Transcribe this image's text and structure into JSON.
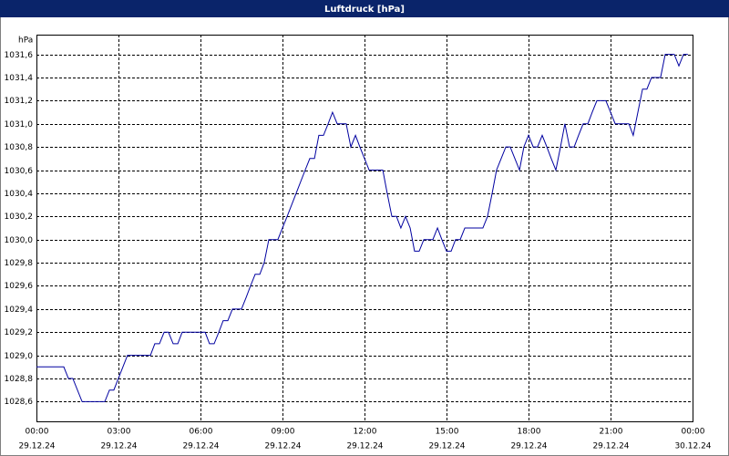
{
  "chart_data": {
    "type": "line",
    "title": "Luftdruck [hPa]",
    "y_unit": "hPa",
    "x": [
      0.0,
      1.0,
      1.17,
      1.33,
      1.67,
      2.5,
      2.67,
      2.83,
      3.33,
      4.17,
      4.33,
      4.5,
      4.67,
      4.83,
      5.0,
      5.17,
      5.33,
      6.17,
      6.33,
      6.5,
      6.67,
      6.83,
      7.0,
      7.17,
      7.5,
      7.67,
      7.83,
      8.0,
      8.17,
      8.33,
      8.5,
      8.83,
      9.17,
      9.5,
      9.83,
      10.0,
      10.17,
      10.33,
      10.5,
      10.67,
      10.83,
      11.0,
      11.33,
      11.5,
      11.67,
      11.83,
      12.0,
      12.17,
      12.67,
      12.83,
      13.0,
      13.17,
      13.33,
      13.5,
      13.67,
      13.83,
      14.0,
      14.17,
      14.5,
      14.67,
      14.83,
      15.0,
      15.17,
      15.33,
      15.5,
      15.67,
      16.33,
      16.5,
      16.67,
      16.83,
      17.0,
      17.17,
      17.33,
      17.5,
      17.67,
      17.83,
      18.0,
      18.17,
      18.33,
      18.5,
      18.67,
      18.83,
      19.0,
      19.17,
      19.33,
      19.5,
      19.67,
      19.83,
      20.0,
      20.17,
      20.33,
      20.5,
      20.83,
      21.0,
      21.17,
      21.67,
      21.83,
      22.0,
      22.17,
      22.33,
      22.5,
      22.83,
      23.0,
      23.33,
      23.5,
      23.67,
      23.83
    ],
    "values": [
      1028.9,
      1028.9,
      1028.8,
      1028.8,
      1028.6,
      1028.6,
      1028.7,
      1028.7,
      1029.0,
      1029.0,
      1029.1,
      1029.1,
      1029.2,
      1029.2,
      1029.1,
      1029.1,
      1029.2,
      1029.2,
      1029.1,
      1029.1,
      1029.2,
      1029.3,
      1029.3,
      1029.4,
      1029.4,
      1029.5,
      1029.6,
      1029.7,
      1029.7,
      1029.8,
      1030.0,
      1030.0,
      1030.2,
      1030.4,
      1030.6,
      1030.7,
      1030.7,
      1030.9,
      1030.9,
      1031.0,
      1031.1,
      1031.0,
      1031.0,
      1030.8,
      1030.9,
      1030.8,
      1030.7,
      1030.6,
      1030.6,
      1030.4,
      1030.2,
      1030.2,
      1030.1,
      1030.2,
      1030.1,
      1029.9,
      1029.9,
      1030.0,
      1030.0,
      1030.1,
      1030.0,
      1029.9,
      1029.9,
      1030.0,
      1030.0,
      1030.1,
      1030.1,
      1030.2,
      1030.4,
      1030.6,
      1030.7,
      1030.8,
      1030.8,
      1030.7,
      1030.6,
      1030.8,
      1030.9,
      1030.8,
      1030.8,
      1030.9,
      1030.8,
      1030.7,
      1030.6,
      1030.8,
      1031.0,
      1030.8,
      1030.8,
      1030.9,
      1031.0,
      1031.0,
      1031.1,
      1031.2,
      1031.2,
      1031.1,
      1031.0,
      1031.0,
      1030.9,
      1031.1,
      1031.3,
      1031.3,
      1031.4,
      1031.4,
      1031.6,
      1031.6,
      1031.5,
      1031.6,
      1031.6
    ],
    "color": "#0000a0",
    "xlim": [
      0,
      24
    ],
    "xticks": [
      {
        "value": 0,
        "label": "00:00"
      },
      {
        "value": 3,
        "label": "03:00"
      },
      {
        "value": 6,
        "label": "06:00"
      },
      {
        "value": 9,
        "label": "09:00"
      },
      {
        "value": 12,
        "label": "12:00"
      },
      {
        "value": 15,
        "label": "15:00"
      },
      {
        "value": 18,
        "label": "18:00"
      },
      {
        "value": 21,
        "label": "21:00"
      },
      {
        "value": 24,
        "label": "00:00"
      }
    ],
    "xtick_dates": [
      "29.12.24",
      "29.12.24",
      "29.12.24",
      "29.12.24",
      "29.12.24",
      "29.12.24",
      "29.12.24",
      "29.12.24",
      "30.12.24"
    ],
    "ylim": [
      1028.43,
      1031.77
    ],
    "yticks": [
      {
        "value": 1028.6,
        "label": "1028,6"
      },
      {
        "value": 1028.8,
        "label": "1028,8"
      },
      {
        "value": 1029.0,
        "label": "1029,0"
      },
      {
        "value": 1029.2,
        "label": "1029,2"
      },
      {
        "value": 1029.4,
        "label": "1029,4"
      },
      {
        "value": 1029.6,
        "label": "1029,6"
      },
      {
        "value": 1029.8,
        "label": "1029,8"
      },
      {
        "value": 1030.0,
        "label": "1030,0"
      },
      {
        "value": 1030.2,
        "label": "1030,2"
      },
      {
        "value": 1030.4,
        "label": "1030,4"
      },
      {
        "value": 1030.6,
        "label": "1030,6"
      },
      {
        "value": 1030.8,
        "label": "1030,8"
      },
      {
        "value": 1031.0,
        "label": "1031,0"
      },
      {
        "value": 1031.2,
        "label": "1031,2"
      },
      {
        "value": 1031.4,
        "label": "1031,4"
      },
      {
        "value": 1031.6,
        "label": "1031,6"
      }
    ],
    "grid": true
  }
}
